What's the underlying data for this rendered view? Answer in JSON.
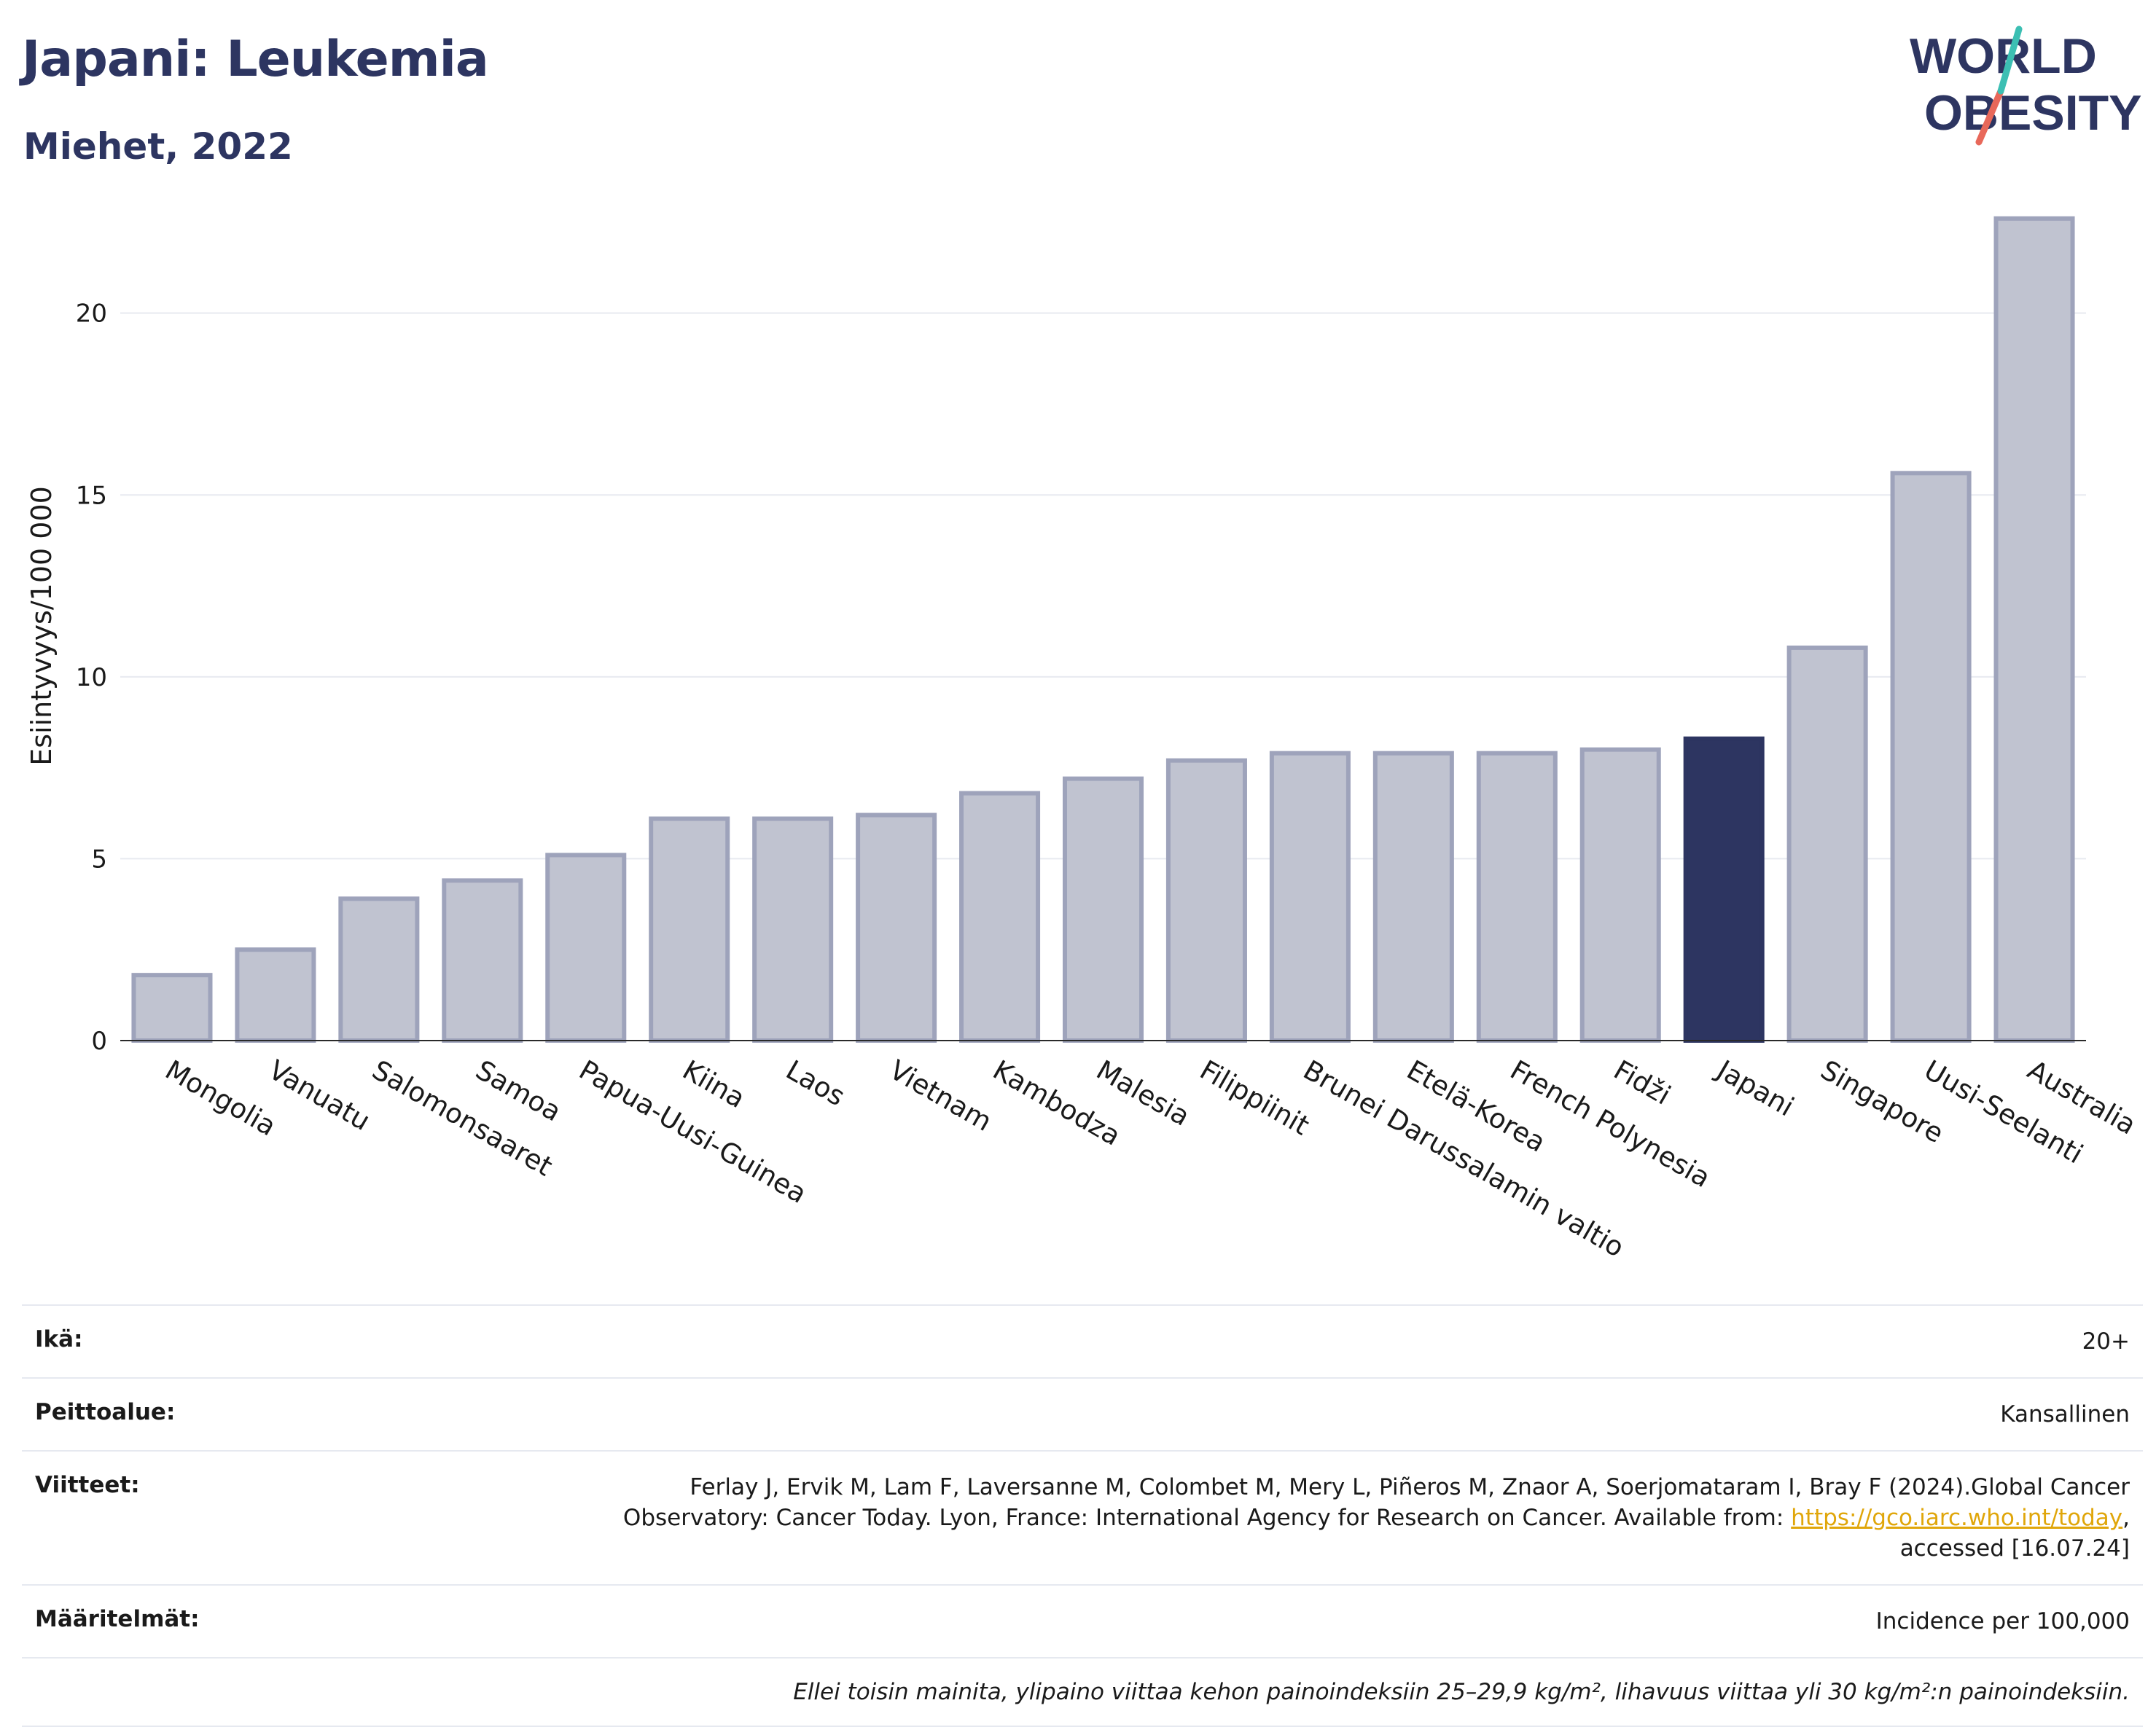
{
  "header": {
    "title": "Japani: Leukemia",
    "subtitle": "Miehet, 2022",
    "logo_line1": "WORLD",
    "logo_line2": "OBESITY"
  },
  "chart_data": {
    "type": "bar",
    "ylabel": "Esiintyvyys/100 000",
    "xlabel": "",
    "ylim": [
      0,
      24
    ],
    "yticks": [
      0,
      5,
      10,
      15,
      20
    ],
    "grid": true,
    "categories": [
      "Mongolia",
      "Vanuatu",
      "Salomonsaaret",
      "Samoa",
      "Papua-Uusi-Guinea",
      "Kiina",
      "Laos",
      "Vietnam",
      "Kambodza",
      "Malesia",
      "Filippiinit",
      "Brunei Darussalamin valtio",
      "Etelä-Korea",
      "French Polynesia",
      "Fidži",
      "Japani",
      "Singapore",
      "Uusi-Seelanti",
      "Australia"
    ],
    "values": [
      1.8,
      2.5,
      3.9,
      4.4,
      5.1,
      6.1,
      6.1,
      6.2,
      6.8,
      7.2,
      7.7,
      7.9,
      7.9,
      7.9,
      8.0,
      8.3,
      10.8,
      15.6,
      22.6
    ],
    "highlight": "Japani",
    "colors": {
      "bar": "#c0c3d0",
      "bar_edge": "#9ea3bb",
      "highlight": "#2d3561"
    }
  },
  "meta": {
    "age_label": "Ikä:",
    "age_value": "20+",
    "coverage_label": "Peittoalue:",
    "coverage_value": "Kansallinen",
    "refs_label": "Viitteet:",
    "refs_line1": "Ferlay J, Ervik M, Lam F, Laversanne M, Colombet M, Mery L, Piñeros M, Znaor A, Soerjomataram I, Bray F (2024).Global Cancer",
    "refs_line2_pre": "Observatory: Cancer Today. Lyon, France: International Agency for Research on Cancer. Available from: ",
    "refs_link": "https://gco.iarc.who.int/today",
    "refs_line2_post": ",",
    "refs_line3": "accessed [16.07.24]",
    "def_label": "Määritelmät:",
    "def_value": "Incidence per 100,000",
    "note": "Ellei toisin mainita, ylipaino viittaa kehon painoindeksiin 25–29,9 kg/m², lihavuus viittaa yli 30 kg/m²:n painoindeksiin."
  }
}
